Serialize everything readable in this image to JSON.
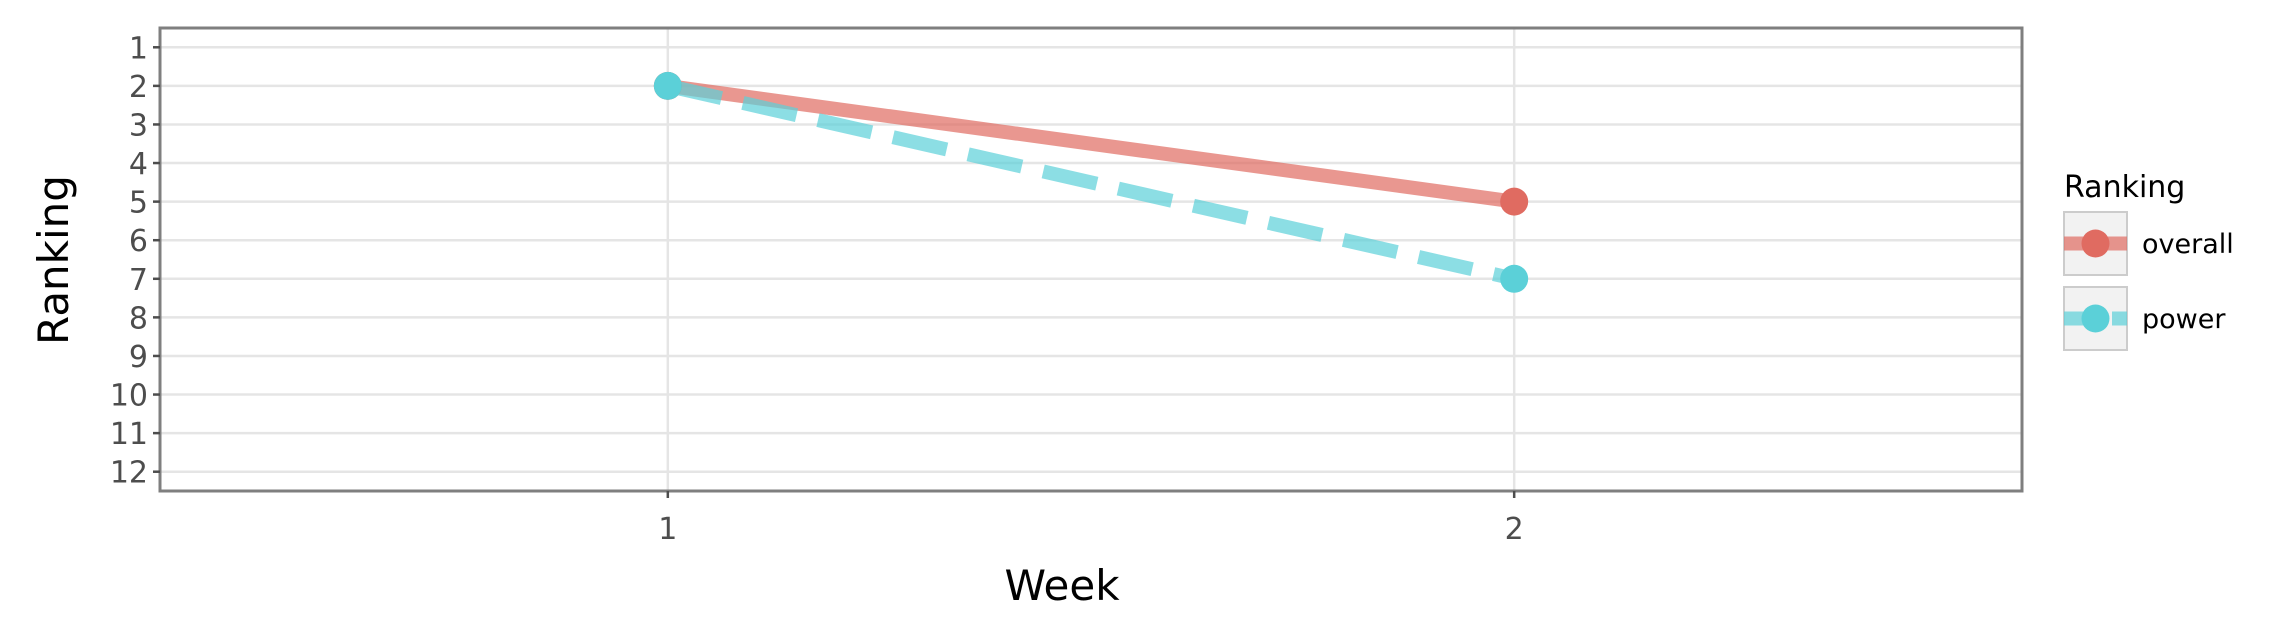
{
  "chart_data": {
    "type": "line",
    "xlabel": "Week",
    "ylabel": "Ranking",
    "x_ticks": [
      "1",
      "2"
    ],
    "y_ticks": [
      "1",
      "2",
      "3",
      "4",
      "5",
      "6",
      "7",
      "8",
      "9",
      "10",
      "11",
      "12"
    ],
    "xlim": [
      0.4,
      2.6
    ],
    "ylim": [
      12.5,
      0.5
    ],
    "y_reversed": true,
    "grid": true,
    "legend": {
      "title": "Ranking",
      "placement": "right"
    },
    "series": [
      {
        "name": "overall",
        "x": [
          1,
          2
        ],
        "y": [
          2,
          5
        ],
        "color": "#E06B61",
        "dashed": false
      },
      {
        "name": "power",
        "x": [
          1,
          2
        ],
        "y": [
          2,
          7
        ],
        "color": "#5BD0D8",
        "dashed": true
      }
    ]
  }
}
